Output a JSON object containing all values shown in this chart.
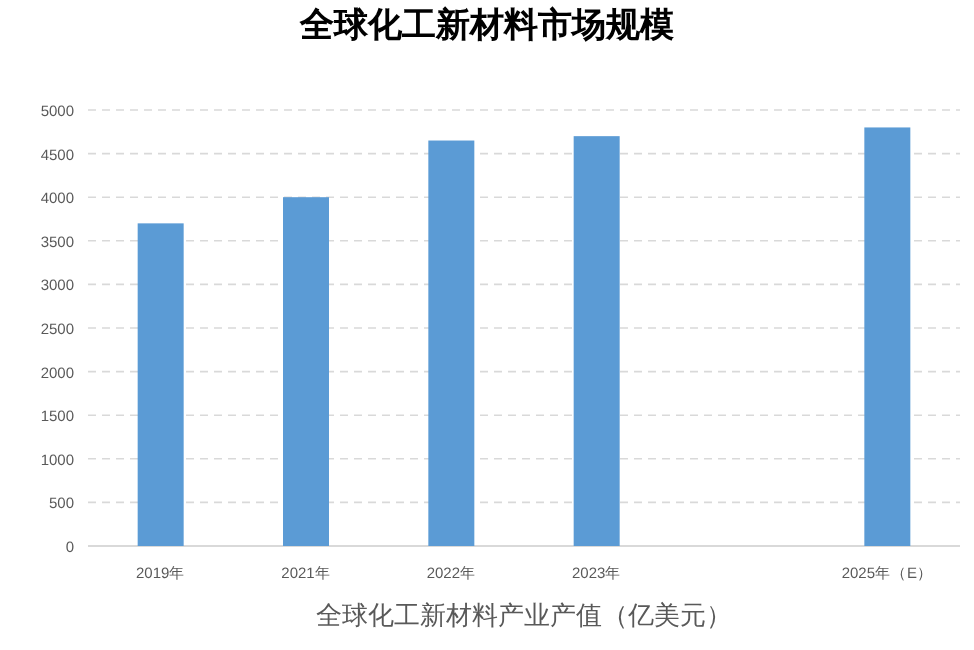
{
  "chart_data": {
    "type": "bar",
    "title": "全球化工新材料市场规模",
    "xlabel": "全球化工新材料产业产值（亿美元）",
    "categories": [
      "2019年",
      "2021年",
      "2022年",
      "2023年",
      null,
      "2025年（E）"
    ],
    "values": [
      3700,
      4000,
      4650,
      4700,
      null,
      4800
    ],
    "color": "#5b9bd5",
    "ylim": [
      0,
      5000
    ],
    "yticks": [
      0,
      500,
      1000,
      1500,
      2000,
      2500,
      3000,
      3500,
      4000,
      4500,
      5000
    ],
    "grid": "y"
  }
}
